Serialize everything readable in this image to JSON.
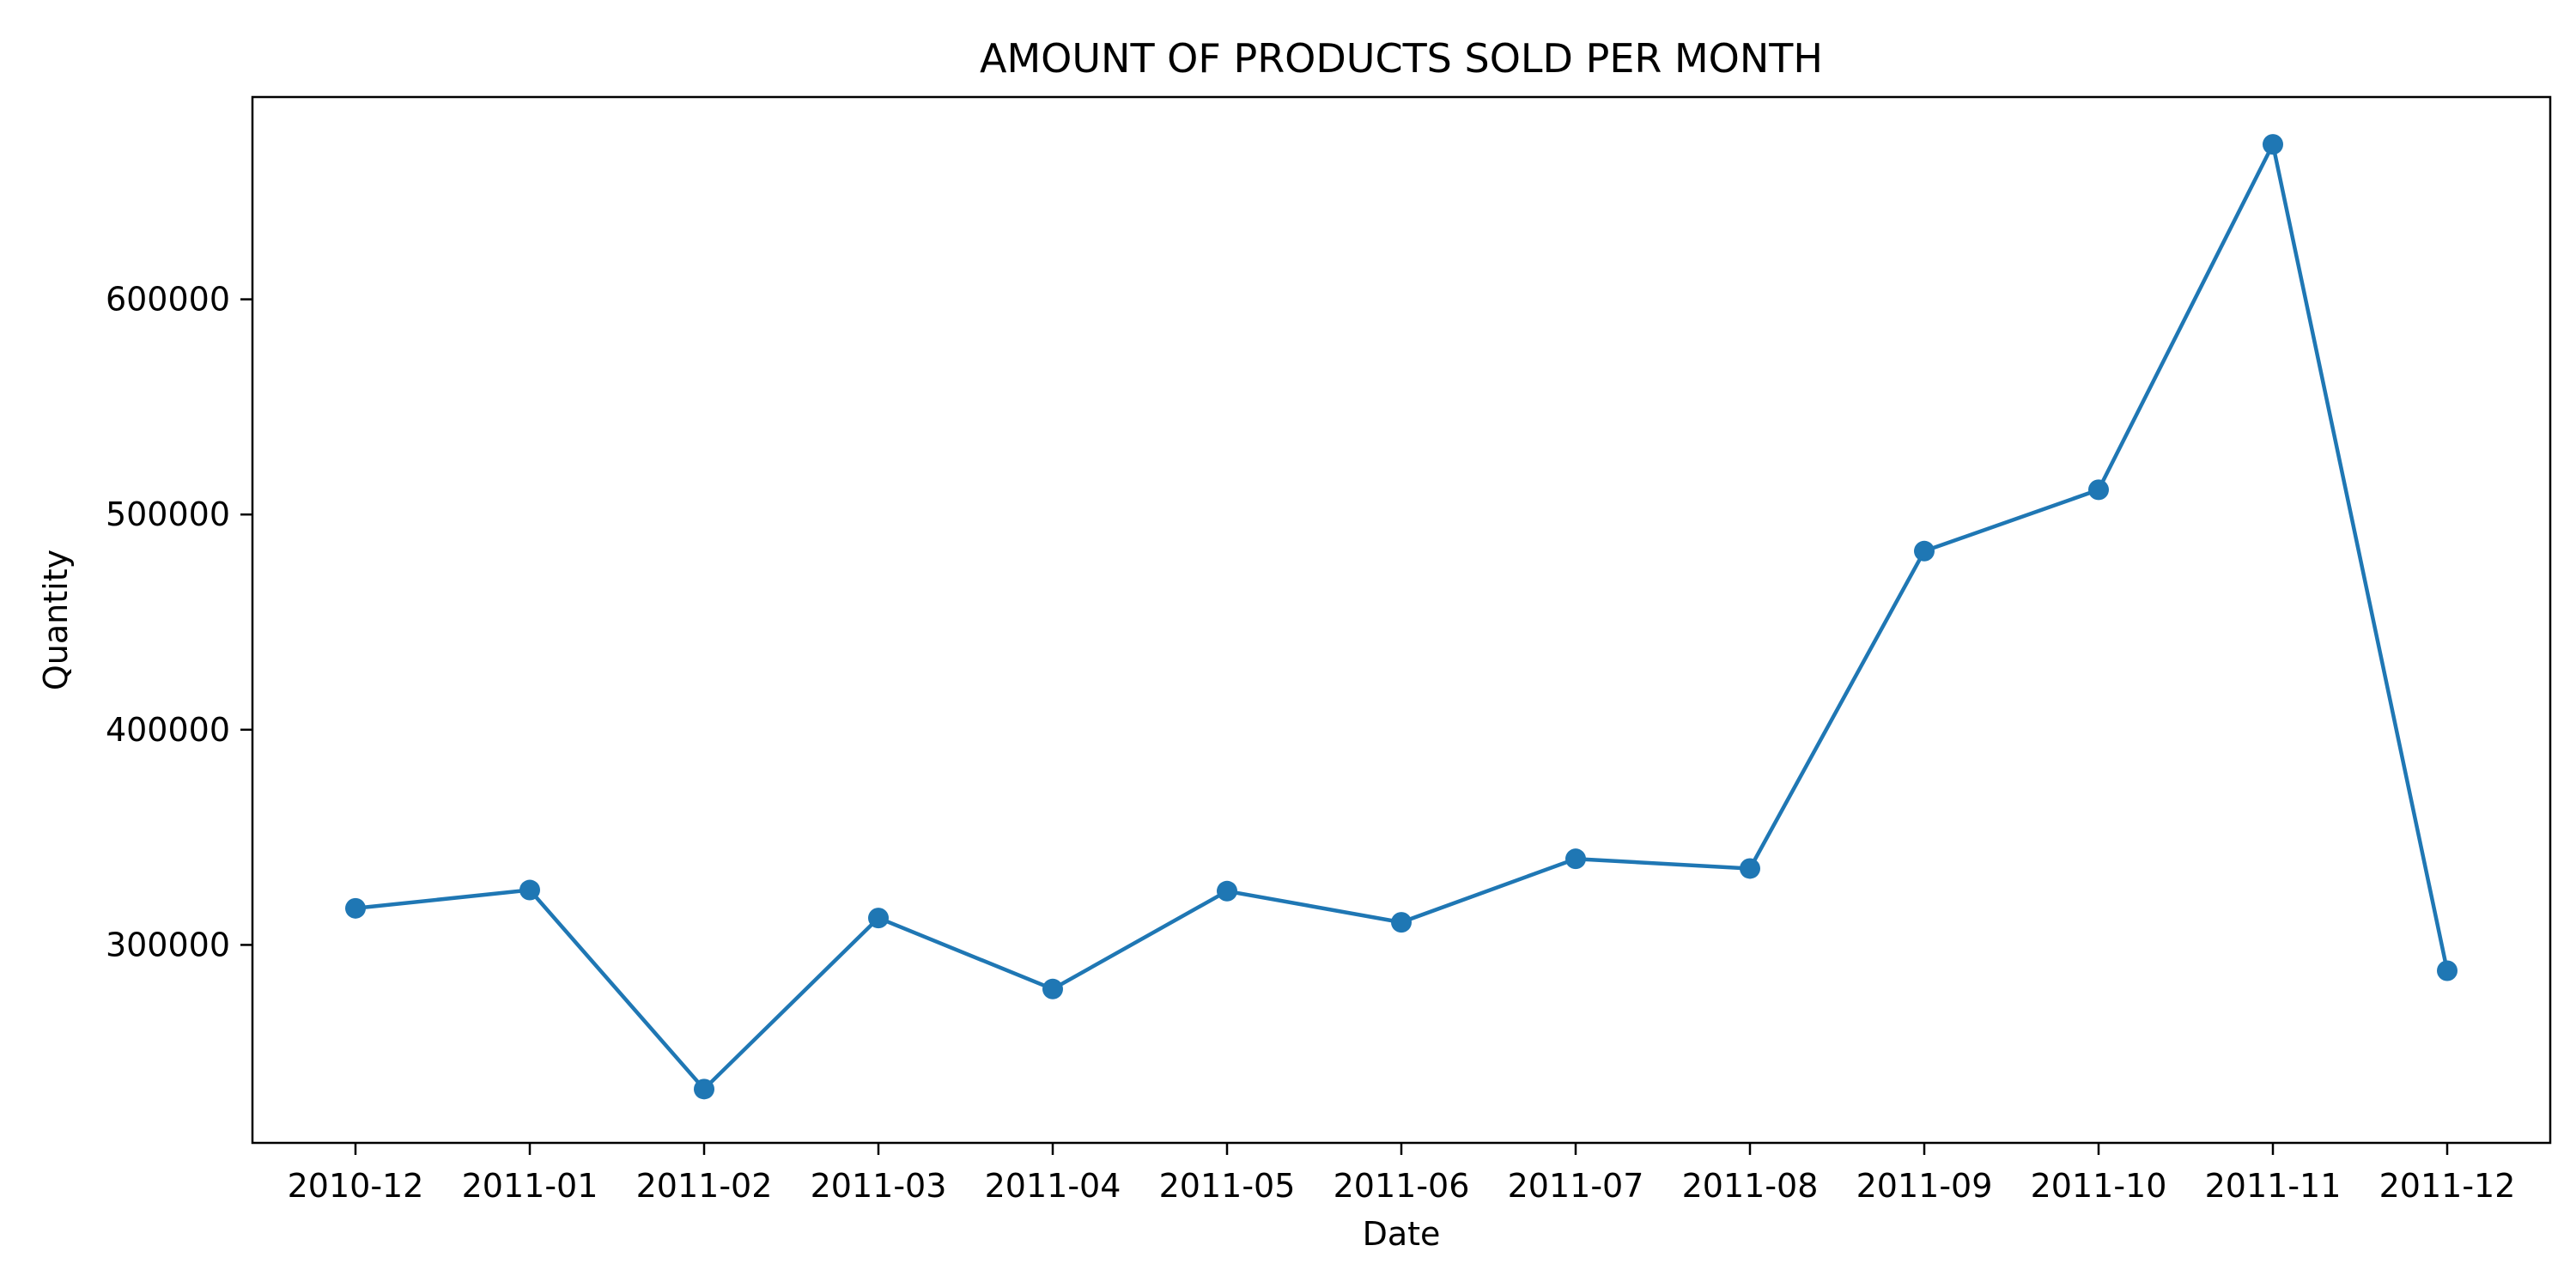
{
  "chart_data": {
    "type": "line",
    "title": "AMOUNT OF PRODUCTS SOLD PER MONTH",
    "xlabel": "Date",
    "ylabel": "Quantity",
    "categories": [
      "2010-12",
      "2011-01",
      "2011-02",
      "2011-03",
      "2011-04",
      "2011-05",
      "2011-06",
      "2011-07",
      "2011-08",
      "2011-09",
      "2011-10",
      "2011-11",
      "2011-12"
    ],
    "series": [
      {
        "values": [
          317000,
          325500,
          233000,
          312500,
          279500,
          325000,
          310500,
          340000,
          335500,
          483000,
          511500,
          672000,
          288000
        ],
        "color": "#1f77b4",
        "marker": "circle"
      }
    ],
    "ylim": [
      208000,
      694000
    ],
    "yticks": [
      300000,
      400000,
      500000,
      600000
    ],
    "grid": false,
    "legend": "none"
  }
}
